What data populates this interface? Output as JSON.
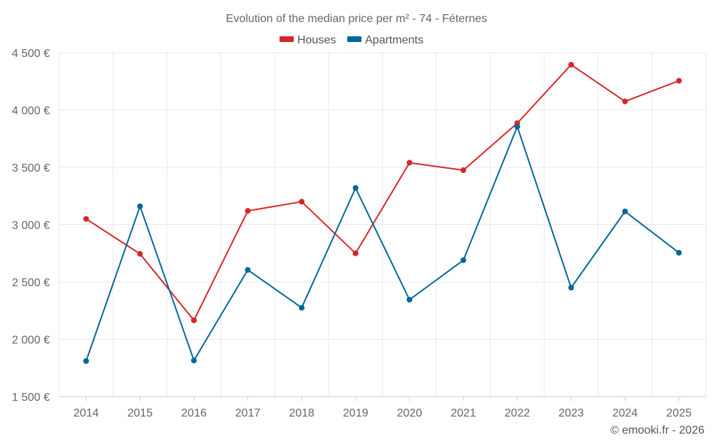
{
  "chart_data": {
    "type": "line",
    "title": "Evolution of the median price per m² - 74 - Féternes",
    "xlabel": "",
    "ylabel": "",
    "categories": [
      "2014",
      "2015",
      "2016",
      "2017",
      "2018",
      "2019",
      "2020",
      "2021",
      "2022",
      "2023",
      "2024",
      "2025"
    ],
    "ylim": [
      1500,
      4500
    ],
    "yticks": [
      1500,
      2000,
      2500,
      3000,
      3500,
      4000,
      4500
    ],
    "ytick_labels": [
      "1 500 €",
      "2 000 €",
      "2 500 €",
      "3 000 €",
      "3 500 €",
      "4 000 €",
      "4 500 €"
    ],
    "grid": true,
    "legend_position": "top-center",
    "series": [
      {
        "name": "Houses",
        "color": "#d62728",
        "values": [
          3050,
          2745,
          2165,
          3120,
          3200,
          2750,
          3540,
          3475,
          3885,
          4395,
          4075,
          4255
        ]
      },
      {
        "name": "Apartments",
        "color": "#03679a",
        "values": [
          1810,
          3160,
          1815,
          2605,
          2275,
          3320,
          2345,
          2690,
          3855,
          2450,
          3115,
          2755
        ]
      }
    ],
    "credit": "© emooki.fr - 2026"
  }
}
